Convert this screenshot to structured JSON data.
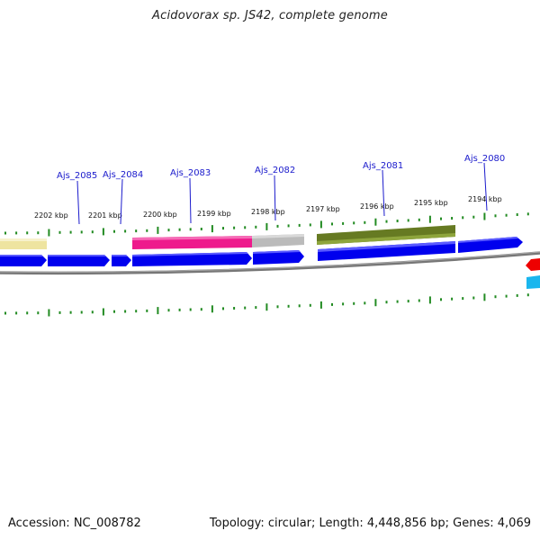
{
  "title": "Acidovorax sp. JS42, complete genome",
  "footer": {
    "accession": "Accession: NC_008782",
    "summary": "Topology: circular; Length: 4,448,856 bp; Genes: 4,069"
  },
  "colors": {
    "cds": "#0000ee",
    "pink": "#ee1a8c",
    "gray": "#bbbbbb",
    "olive": "#667a22",
    "yellow": "#eee4a0",
    "red": "#ee0000",
    "cyan": "#1ab6ee",
    "ticks": "#228b22",
    "backbone": "#888888",
    "label": "#1a1acc"
  },
  "scale_ticks": [
    "2202 kbp",
    "2201 kbp",
    "2200 kbp",
    "2199 kbp",
    "2198 kbp",
    "2197 kbp",
    "2196 kbp",
    "2195 kbp",
    "2194 kbp"
  ],
  "gene_labels": [
    "Ajs_2085",
    "Ajs_2084",
    "Ajs_2083",
    "Ajs_2082",
    "Ajs_2081",
    "Ajs_2080"
  ]
}
